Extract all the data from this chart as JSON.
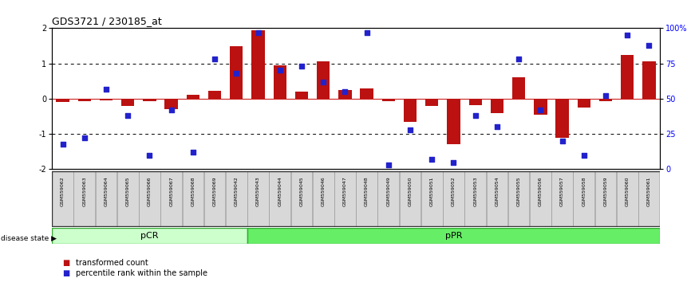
{
  "title": "GDS3721 / 230185_at",
  "samples": [
    "GSM559062",
    "GSM559063",
    "GSM559064",
    "GSM559065",
    "GSM559066",
    "GSM559067",
    "GSM559068",
    "GSM559069",
    "GSM559042",
    "GSM559043",
    "GSM559044",
    "GSM559045",
    "GSM559046",
    "GSM559047",
    "GSM559048",
    "GSM559049",
    "GSM559050",
    "GSM559051",
    "GSM559052",
    "GSM559053",
    "GSM559054",
    "GSM559055",
    "GSM559056",
    "GSM559057",
    "GSM559058",
    "GSM559059",
    "GSM559060",
    "GSM559061"
  ],
  "transformed_count": [
    -0.1,
    -0.08,
    -0.05,
    -0.2,
    -0.08,
    -0.3,
    0.12,
    0.22,
    1.5,
    1.95,
    0.95,
    0.2,
    1.05,
    0.25,
    0.3,
    -0.08,
    -0.65,
    -0.2,
    -1.3,
    -0.18,
    -0.4,
    0.6,
    -0.45,
    -1.1,
    -0.25,
    -0.08,
    1.25,
    1.05
  ],
  "percentile_rank": [
    18,
    22,
    57,
    38,
    10,
    42,
    12,
    78,
    68,
    97,
    70,
    73,
    62,
    55,
    97,
    3,
    28,
    7,
    5,
    38,
    30,
    78,
    42,
    20,
    10,
    52,
    95,
    88
  ],
  "pCR_count": 9,
  "pPR_count": 19,
  "ylim": [
    -2,
    2
  ],
  "bar_color": "#bb1111",
  "dot_color": "#2222cc",
  "pCR_color": "#ccffcc",
  "pPR_color": "#66ee66",
  "border_color": "#33aa33",
  "bg_color": "#ffffff",
  "zero_line_color": "#cc2222",
  "dotted_line_color": "#000000",
  "y_left_ticks": [
    -2,
    -1,
    0,
    1,
    2
  ],
  "y_right_ticks": [
    0,
    25,
    50,
    75,
    100
  ],
  "legend_transformed": "transformed count",
  "legend_percentile": "percentile rank within the sample",
  "disease_state_label": "disease state",
  "pCR_label": "pCR",
  "pPR_label": "pPR"
}
